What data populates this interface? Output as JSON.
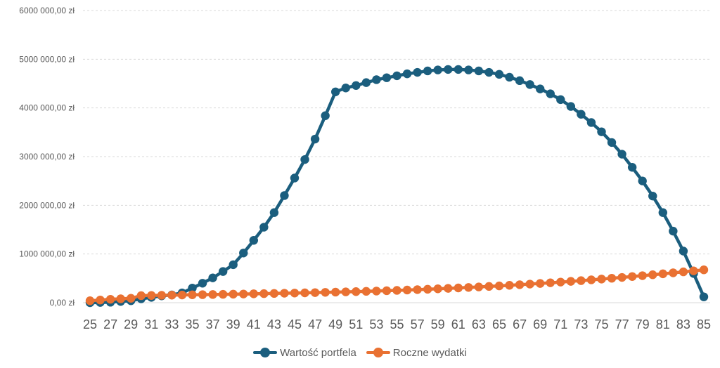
{
  "chart_data": {
    "type": "line",
    "title": "",
    "xlabel": "",
    "ylabel": "",
    "x": [
      25,
      26,
      27,
      28,
      29,
      30,
      31,
      32,
      33,
      34,
      35,
      36,
      37,
      38,
      39,
      40,
      41,
      42,
      43,
      44,
      45,
      46,
      47,
      48,
      49,
      50,
      51,
      52,
      53,
      54,
      55,
      56,
      57,
      58,
      59,
      60,
      61,
      62,
      63,
      64,
      65,
      66,
      67,
      68,
      69,
      70,
      71,
      72,
      73,
      74,
      75,
      76,
      77,
      78,
      79,
      80,
      81,
      82,
      83,
      84,
      85
    ],
    "x_tick_labels": [
      "25",
      "27",
      "29",
      "31",
      "33",
      "35",
      "37",
      "39",
      "41",
      "43",
      "45",
      "47",
      "49",
      "51",
      "53",
      "55",
      "57",
      "59",
      "61",
      "63",
      "65",
      "67",
      "69",
      "71",
      "73",
      "75",
      "77",
      "79",
      "81",
      "83",
      "85"
    ],
    "ylim": [
      0,
      6000000
    ],
    "y_tick_labels": [
      "0,00 zł",
      "1000 000,00 zł",
      "2000 000,00 zł",
      "3000 000,00 zł",
      "4000 000,00 zł",
      "5000 000,00 zł",
      "6000 000,00 zł"
    ],
    "y_ticks": [
      0,
      1000000,
      2000000,
      3000000,
      4000000,
      5000000,
      6000000
    ],
    "grid": true,
    "legend_position": "bottom",
    "series": [
      {
        "name": "Wartość portfela",
        "color": "#1b5e7e",
        "values": [
          0,
          5000,
          10000,
          25000,
          40000,
          80000,
          110000,
          140000,
          160000,
          200000,
          300000,
          400000,
          510000,
          640000,
          780000,
          1020000,
          1280000,
          1550000,
          1850000,
          2200000,
          2560000,
          2940000,
          3360000,
          3840000,
          4330000,
          4410000,
          4460000,
          4520000,
          4580000,
          4620000,
          4660000,
          4700000,
          4730000,
          4760000,
          4780000,
          4790000,
          4790000,
          4780000,
          4760000,
          4730000,
          4690000,
          4630000,
          4560000,
          4480000,
          4390000,
          4290000,
          4170000,
          4030000,
          3870000,
          3700000,
          3510000,
          3290000,
          3050000,
          2780000,
          2500000,
          2190000,
          1850000,
          1470000,
          1060000,
          600000,
          120000
        ]
      },
      {
        "name": "Roczne wydatki",
        "color": "#e97132",
        "values": [
          40000,
          55000,
          70000,
          80000,
          90000,
          145000,
          148000,
          152000,
          155000,
          158000,
          162000,
          165000,
          168000,
          172000,
          175000,
          178000,
          182000,
          186000,
          190000,
          194000,
          198000,
          202000,
          207000,
          212000,
          217000,
          222000,
          227000,
          233000,
          239000,
          246000,
          253000,
          260000,
          268000,
          276000,
          285000,
          294000,
          303000,
          313000,
          323000,
          334000,
          345000,
          357000,
          369000,
          382000,
          395000,
          409000,
          423000,
          438000,
          453000,
          469000,
          485000,
          502000,
          519000,
          537000,
          555000,
          574000,
          593000,
          613000,
          633000,
          654000,
          675000
        ]
      }
    ]
  }
}
